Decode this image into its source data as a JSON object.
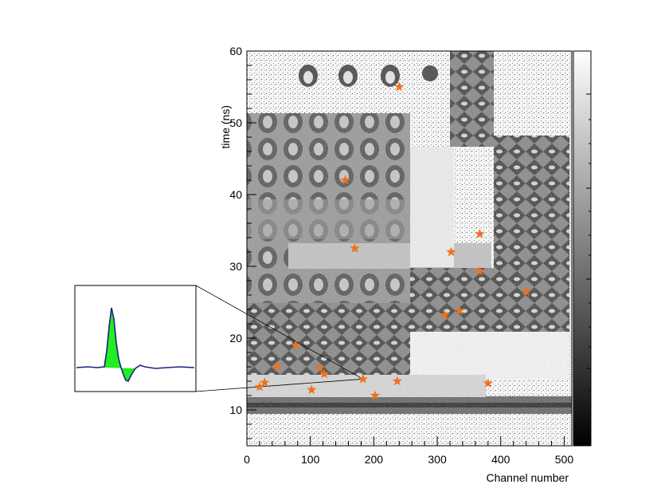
{
  "chart_data": {
    "type": "heatmap",
    "title": "",
    "xlabel": "Channel number",
    "ylabel": "time (ns)",
    "xlim": [
      0,
      512
    ],
    "ylim": [
      5,
      60
    ],
    "x_ticks": [
      0,
      100,
      200,
      300,
      400,
      500
    ],
    "y_ticks": [
      10,
      20,
      30,
      40,
      50,
      60
    ],
    "colormap": "grayscale",
    "colorbar": true,
    "marker_color": "#f07020",
    "markers": [
      {
        "x": 240,
        "y": 55.0
      },
      {
        "x": 155,
        "y": 42.0
      },
      {
        "x": 367,
        "y": 34.5
      },
      {
        "x": 170,
        "y": 32.5
      },
      {
        "x": 322,
        "y": 32.0
      },
      {
        "x": 367,
        "y": 29.3
      },
      {
        "x": 440,
        "y": 26.5
      },
      {
        "x": 335,
        "y": 23.8
      },
      {
        "x": 312,
        "y": 23.2
      },
      {
        "x": 77,
        "y": 19.0
      },
      {
        "x": 48,
        "y": 16.0
      },
      {
        "x": 115,
        "y": 15.8
      },
      {
        "x": 122,
        "y": 15.0
      },
      {
        "x": 183,
        "y": 14.3
      },
      {
        "x": 237,
        "y": 14.0
      },
      {
        "x": 28,
        "y": 13.8
      },
      {
        "x": 20,
        "y": 13.2
      },
      {
        "x": 380,
        "y": 13.7
      },
      {
        "x": 102,
        "y": 12.8
      },
      {
        "x": 202,
        "y": 12.0
      }
    ],
    "inset": {
      "description_free": true,
      "fill_color": "#22ee22",
      "line_color": "#1a237e",
      "linked_to": {
        "x": 183,
        "y": 14.3
      }
    }
  }
}
